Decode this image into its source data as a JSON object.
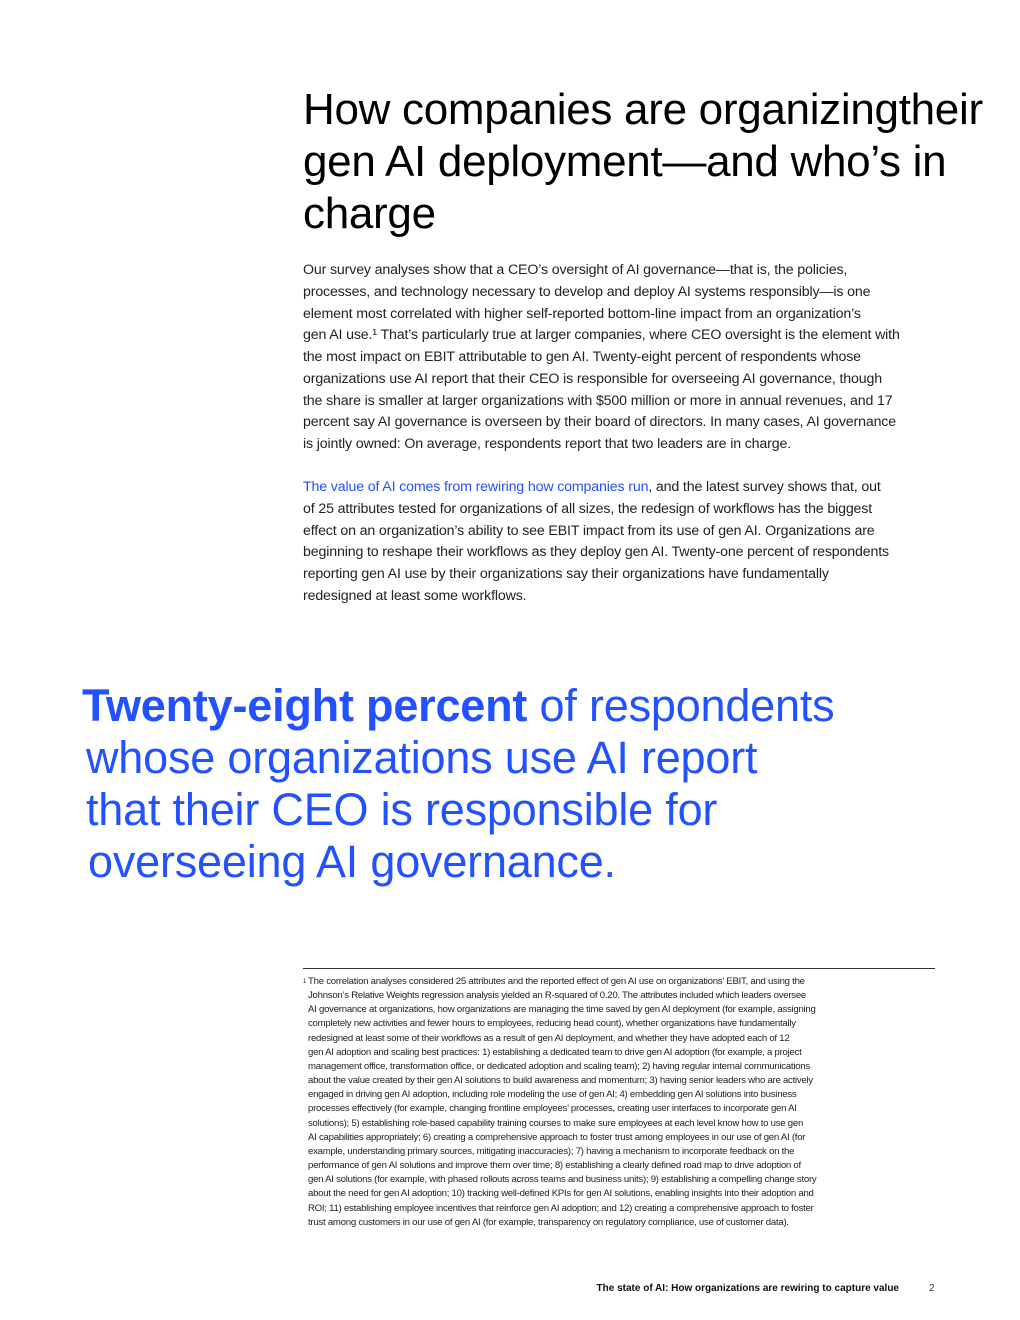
{
  "title": {
    "lines": [
      "How companies are organizing",
      "their gen AI deployment—",
      "and who’s in charge"
    ]
  },
  "paragraph1": {
    "lines": [
      "Our survey analyses show that a CEO’s oversight of AI governance—that is, the policies,",
      "processes, and technology necessary to develop and deploy AI systems responsibly—is one",
      "element most correlated with higher self-reported bottom-line impact from an organization’s",
      "gen AI use.¹ That’s particularly true at larger companies, where CEO oversight is the element with",
      "the most impact on EBIT attributable to gen AI. Twenty-eight percent of respondents whose",
      "organizations use AI report that their CEO is responsible for overseeing AI governance, though",
      "the share is smaller at larger organizations with $500 million or more in annual revenues, and 17",
      "percent say AI governance is overseen by their board of directors. In many cases, AI governance",
      "is jointly owned: On average, respondents report that two leaders are in charge."
    ]
  },
  "paragraph2": {
    "link_text": "The value of AI comes from rewiring how companies run",
    "first_line_rest": ", and the latest survey shows that, out",
    "lines": [
      "of 25 attributes tested for organizations of all sizes, the redesign of workflows has the biggest",
      "effect on an organization’s ability to see EBIT impact from its use of gen AI. Organizations are",
      "beginning to reshape their workflows as they deploy gen AI. Twenty-one percent of respondents",
      "reporting gen AI use by their organizations say their organizations have fundamentally",
      "redesigned at least some workflows."
    ]
  },
  "pull_quote": {
    "bold": "Twenty-eight percent",
    "first_line_rest": " of respondents",
    "lines": [
      "whose organizations use AI report",
      "that their CEO is responsible for",
      "overseeing AI governance."
    ]
  },
  "footnote": {
    "marker": "1",
    "lines": [
      "The correlation analyses considered 25 attributes and the reported effect of gen AI use on organizations’ EBIT, and using the",
      "Johnson’s Relative Weights regression analysis yielded an R-squared of 0.20. The attributes included which leaders oversee",
      "AI governance at organizations, how organizations are managing the time saved by gen AI deployment (for example, assigning",
      "completely new activities and fewer hours to employees, reducing head count), whether organizations have fundamentally",
      "redesigned at least some of their workflows as a result of gen AI deployment, and whether they have adopted each of 12",
      "gen AI adoption and scaling best practices: 1) establishing a dedicated team to drive gen AI adoption (for example, a project",
      "management office, transformation office, or dedicated adoption and scaling team); 2) having regular internal communications",
      "about the value created by their gen AI solutions to build awareness and momentum; 3) having senior leaders who are actively",
      "engaged in driving gen AI adoption, including role modeling the use of gen AI; 4) embedding gen AI solutions into business",
      "processes effectively (for example, changing frontline employees’ processes, creating user interfaces to incorporate gen AI",
      "solutions); 5) establishing role-based capability training courses to make sure employees at each level know how to use gen",
      "AI capabilities appropriately; 6) creating a comprehensive approach to foster trust among employees in our use of gen AI (for",
      "example, understanding primary sources, mitigating inaccuracies); 7) having a mechanism to incorporate feedback on the",
      "performance of gen AI solutions and improve them over time; 8) establishing a clearly defined road map to drive adoption of",
      "gen AI solutions (for example, with phased rollouts across teams and business units); 9) establishing a compelling change story",
      "about the need for gen AI adoption; 10) tracking well-defined KPIs for gen AI solutions, enabling insights into their adoption and",
      "ROI; 11) establishing employee incentives that reinforce gen AI adoption; and 12) creating a comprehensive approach to foster",
      "trust among customers in our use of gen AI (for example, transparency on regulatory compliance, use of customer data)."
    ]
  },
  "footer": {
    "report_title": "The state of AI: How organizations are rewiring to capture value",
    "page_number": "2"
  },
  "colors": {
    "accent": "#2251ff",
    "text": "#222222"
  }
}
